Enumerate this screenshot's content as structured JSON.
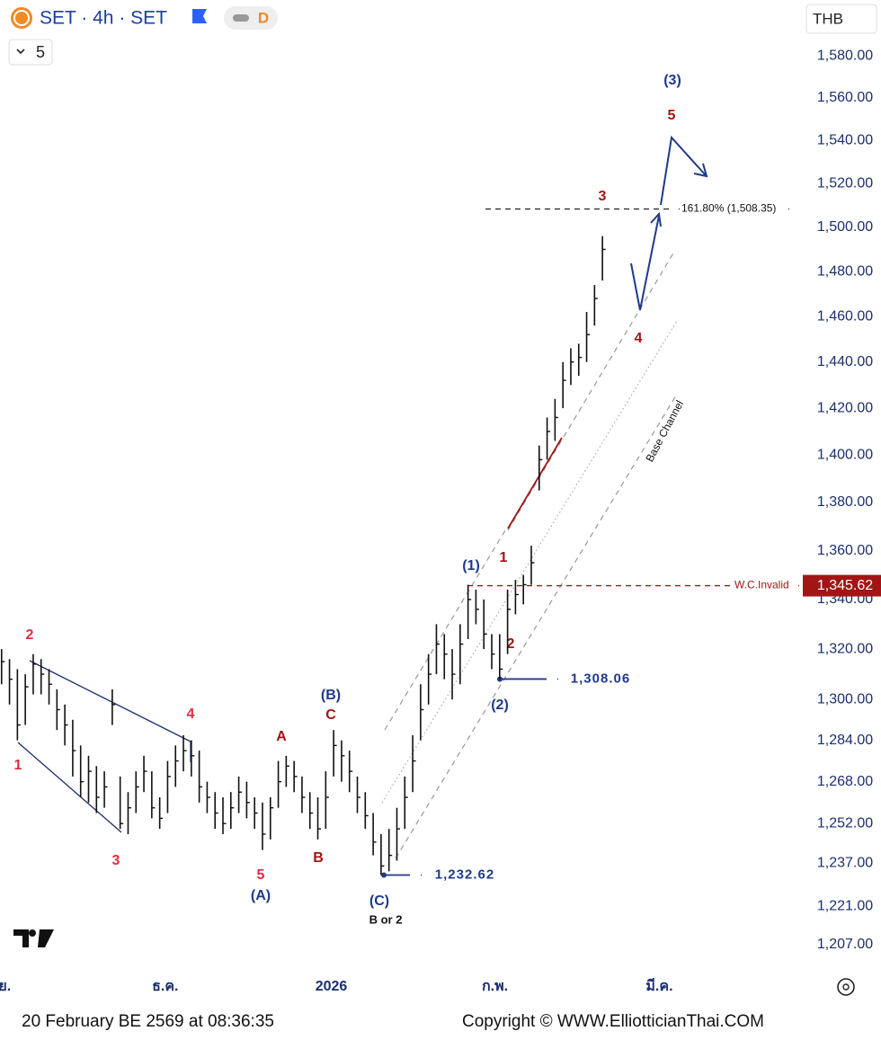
{
  "header": {
    "symbol": "SET · 4h · SET",
    "interval_badge": "D",
    "lines_count": "5",
    "currency": "THB"
  },
  "footer": {
    "timestamp": "20 February BE 2569 at 08:36:35",
    "copyright": "Copyright © WWW.ElliotticianThai.COM"
  },
  "chart_data": {
    "type": "hlc",
    "log_scale": true,
    "color": "#111111",
    "ylim": [
      1199,
      1607
    ],
    "yticks": [
      {
        "value": 1580,
        "label": "1,580.00"
      },
      {
        "value": 1560,
        "label": "1,560.00"
      },
      {
        "value": 1540,
        "label": "1,540.00"
      },
      {
        "value": 1520,
        "label": "1,520.00"
      },
      {
        "value": 1500,
        "label": "1,500.00"
      },
      {
        "value": 1480,
        "label": "1,480.00"
      },
      {
        "value": 1460,
        "label": "1,460.00"
      },
      {
        "value": 1440,
        "label": "1,440.00"
      },
      {
        "value": 1420,
        "label": "1,420.00"
      },
      {
        "value": 1400,
        "label": "1,400.00"
      },
      {
        "value": 1380,
        "label": "1,380.00"
      },
      {
        "value": 1360,
        "label": "1,360.00"
      },
      {
        "value": 1340,
        "label": "1,340.00"
      },
      {
        "value": 1320,
        "label": "1,320.00"
      },
      {
        "value": 1300,
        "label": "1,300.00"
      },
      {
        "value": 1284,
        "label": "1,284.00"
      },
      {
        "value": 1268,
        "label": "1,268.00"
      },
      {
        "value": 1252,
        "label": "1,252.00"
      },
      {
        "value": 1237,
        "label": "1,237.00"
      },
      {
        "value": 1221,
        "label": "1,221.00"
      },
      {
        "value": 1207,
        "label": "1,207.00"
      }
    ],
    "xlim": [
      -0.2,
      101
    ],
    "xticks": [
      {
        "value": 0.4,
        "label": "ย."
      },
      {
        "value": 20.7,
        "label": "ธ.ค."
      },
      {
        "value": 41.7,
        "label": "2026"
      },
      {
        "value": 62.4,
        "label": "ก.พ."
      },
      {
        "value": 83.2,
        "label": "มี.ค."
      }
    ],
    "series": {
      "high": [
        1320,
        1316,
        1312,
        1310,
        1318,
        1316,
        1312,
        1304,
        1298,
        1292,
        1282,
        1278,
        1274,
        1272,
        1304,
        1270,
        1264,
        1272,
        1278,
        1272,
        1262,
        1276,
        1282,
        1286,
        1284,
        1280,
        1268,
        1264,
        1262,
        1264,
        1270,
        1268,
        1262,
        1260,
        1262,
        1276,
        1278,
        1276,
        1270,
        1264,
        1262,
        1272,
        1288,
        1284,
        1280,
        1270,
        1264,
        1256,
        1248,
        1250,
        1258,
        1270,
        1286,
        1306,
        1318,
        1330,
        1326,
        1320,
        1330,
        1346,
        1344,
        1340,
        1326,
        1326,
        1344,
        1348,
        1350,
        1362,
        1404,
        1416,
        1424,
        1440,
        1446,
        1448,
        1462,
        1474,
        1496
      ],
      "low": [
        1306,
        1298,
        1284,
        1290,
        1302,
        1302,
        1298,
        1288,
        1282,
        1270,
        1262,
        1260,
        1256,
        1258,
        1290,
        1250,
        1248,
        1256,
        1264,
        1254,
        1250,
        1256,
        1266,
        1272,
        1270,
        1260,
        1256,
        1250,
        1248,
        1250,
        1256,
        1254,
        1250,
        1242,
        1246,
        1258,
        1266,
        1264,
        1256,
        1250,
        1246,
        1250,
        1270,
        1268,
        1264,
        1256,
        1250,
        1240,
        1232.62,
        1234,
        1238,
        1250,
        1264,
        1284,
        1298,
        1310,
        1308,
        1300,
        1306,
        1324,
        1330,
        1320,
        1312,
        1308.06,
        1318,
        1334,
        1338,
        1346,
        1385,
        1398,
        1406,
        1420,
        1430,
        1434,
        1440,
        1456,
        1476
      ],
      "close": [
        1315,
        1308,
        1290,
        1305,
        1314,
        1310,
        1306,
        1296,
        1290,
        1280,
        1268,
        1272,
        1262,
        1266,
        1298,
        1252,
        1258,
        1266,
        1272,
        1258,
        1254,
        1270,
        1276,
        1280,
        1278,
        1266,
        1262,
        1256,
        1252,
        1258,
        1264,
        1260,
        1256,
        1248,
        1258,
        1268,
        1274,
        1270,
        1262,
        1256,
        1250,
        1262,
        1282,
        1278,
        1272,
        1262,
        1255,
        1245,
        1236,
        1240,
        1250,
        1262,
        1276,
        1296,
        1310,
        1322,
        1318,
        1310,
        1322,
        1340,
        1336,
        1326,
        1318,
        1312,
        1336,
        1342,
        1346,
        1355,
        1398,
        1410,
        1416,
        1432,
        1440,
        1442,
        1452,
        1468,
        1490
      ]
    },
    "levels": [
      {
        "value": 1308.06,
        "label": "1,308.06"
      },
      {
        "value": 1232.62,
        "label": "1,232.62"
      }
    ],
    "fib_level": {
      "value": 1508.35,
      "label": "161.80% (1,508.35)"
    },
    "invalid_level": {
      "value": 1345.62,
      "label": "1,345.62",
      "name": "W.C.Invalid"
    },
    "channel_label": "Base Channel",
    "wave_labels": [
      "2",
      "1",
      "3",
      "4",
      "5",
      "(A)",
      "A",
      "B",
      "(B)",
      "C",
      "(C)",
      "B or 2",
      "(1)",
      "1",
      "2",
      "(2)",
      "3",
      "4",
      "5",
      "(3)"
    ]
  }
}
